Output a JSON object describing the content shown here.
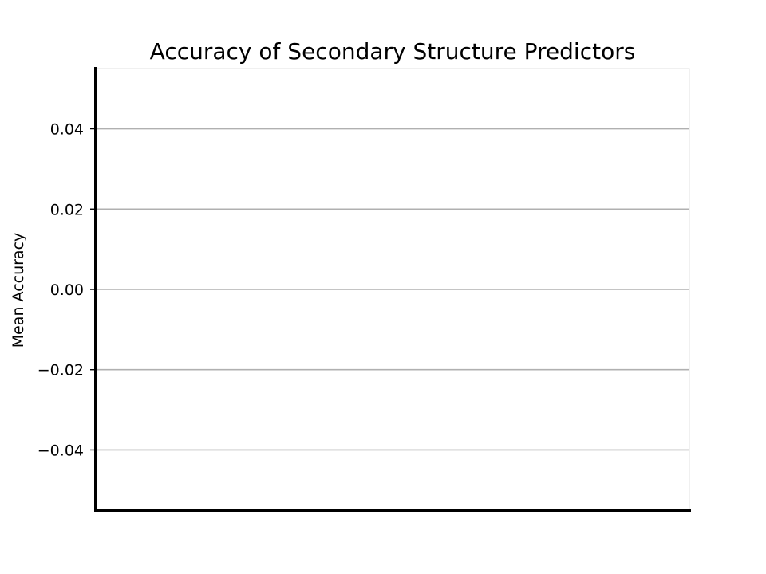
{
  "chart_data": {
    "type": "bar",
    "title": "Accuracy of Secondary Structure Predictors",
    "xlabel": "",
    "ylabel": "Mean Accuracy",
    "categories": [],
    "values": [],
    "ylim": [
      -0.055,
      0.055
    ],
    "yticks": [
      0.04,
      0.02,
      0.0,
      -0.02,
      -0.04
    ],
    "ytick_labels": [
      "0.04",
      "0.02",
      "0.00",
      "−0.02",
      "−0.04"
    ],
    "grid": "y",
    "legend": "none",
    "colors": {
      "grid": "#b0b0b0",
      "axis": "#000000",
      "frame": "#e0e0e0",
      "background": "#ffffff"
    }
  }
}
